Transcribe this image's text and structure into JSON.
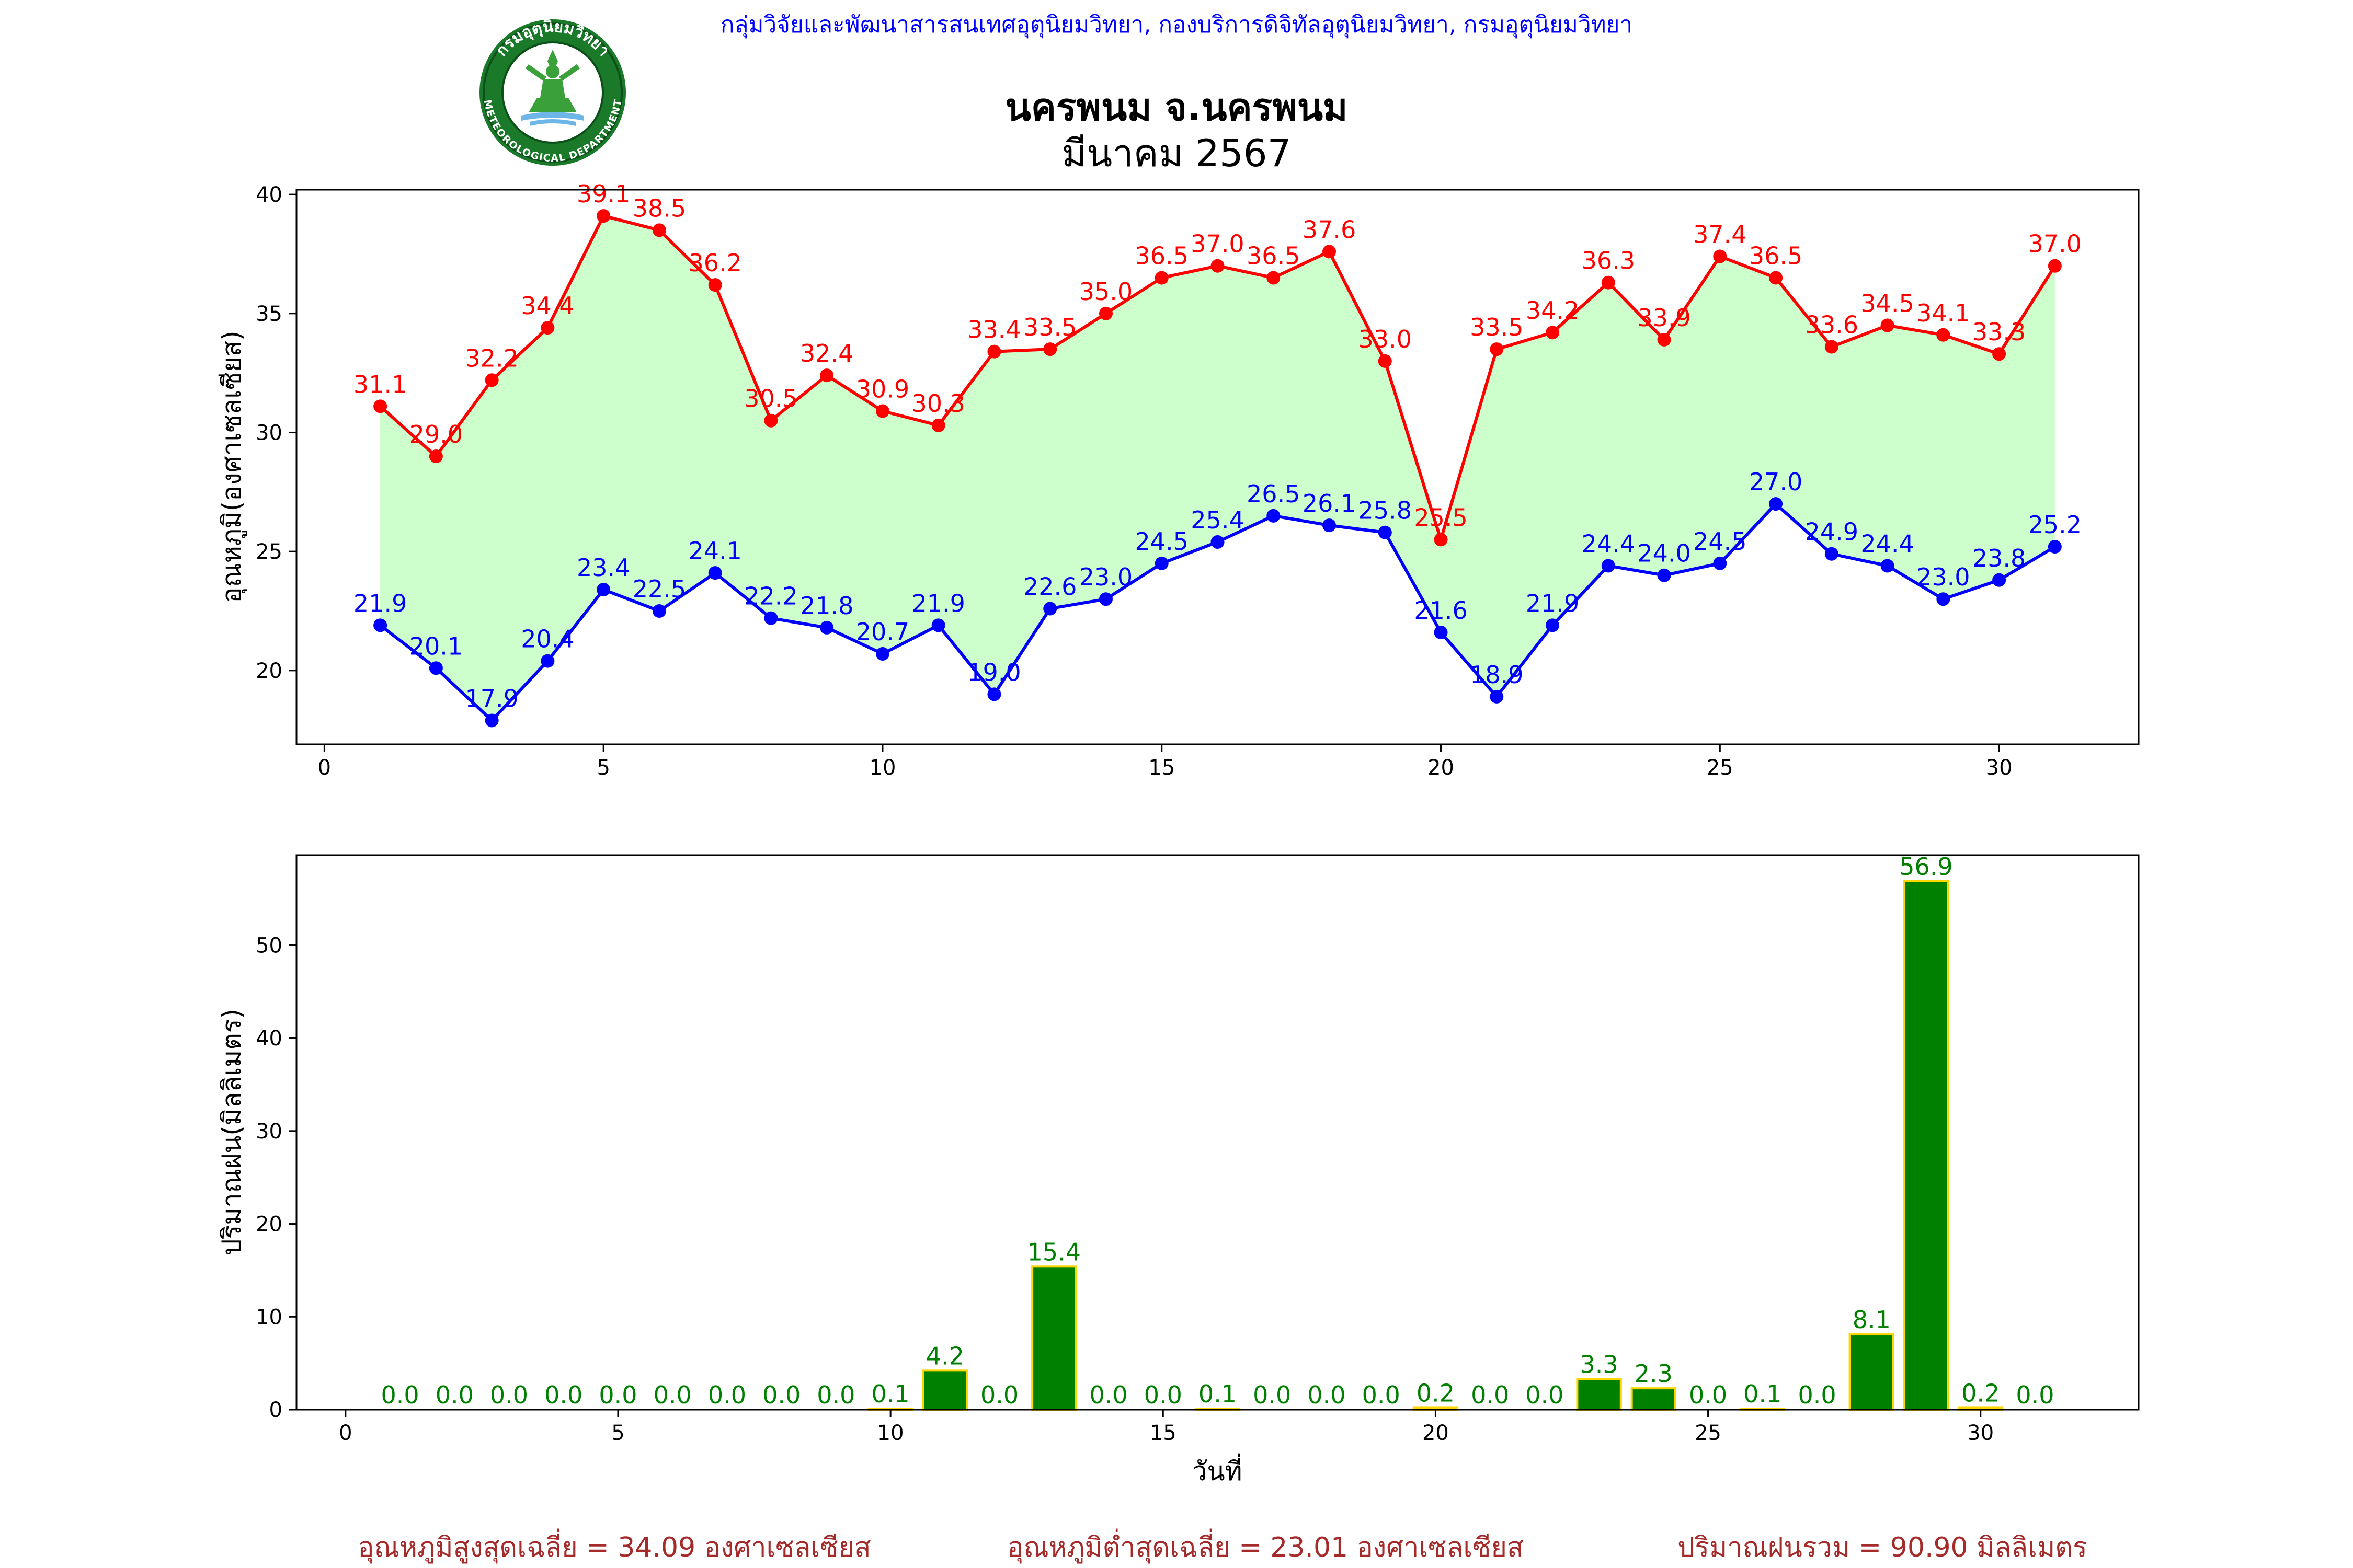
{
  "header": {
    "agency_line": "กลุ่มวิจัยและพัฒนาสารสนเทศอุตุนิยมวิทยา, กองบริการดิจิทัลอุตุนิยมวิทยา, กรมอุตุนิยมวิทยา",
    "station": "นครพนม จ.นครพนม",
    "month": "มีนาคม 2567",
    "logo": {
      "icon": "meteorological-department-seal-icon",
      "top_text": "กรมอุตุนิยมวิทยา",
      "bottom_text": "METEOROLOGICAL DEPARTMENT",
      "colors": {
        "ring": "#1a7a2a",
        "ring_dark": "#0b4f19",
        "deity": "#3aa13a",
        "inner": "#ffffff"
      }
    }
  },
  "colors": {
    "agency_text": "#0000ff",
    "tmax": "#ff0000",
    "tmin": "#0000ff",
    "band_fill": "#ccffcc",
    "rain_bar": "#008000",
    "rain_edge": "#ffd700",
    "rain_label": "#008000",
    "footer_text": "#a52a2a",
    "axis": "#000000"
  },
  "chart_data": [
    {
      "type": "line",
      "ylabel": "อุณหภูมิ(องศาเซลเซียส)",
      "xlim": [
        -0.5,
        32.5
      ],
      "ylim": [
        16.9,
        40.2
      ],
      "xticks": [
        0,
        5,
        10,
        15,
        20,
        25,
        30
      ],
      "yticks": [
        20,
        25,
        30,
        35,
        40
      ],
      "grid": false,
      "fill_between": "tmax-tmin",
      "x": [
        1,
        2,
        3,
        4,
        5,
        6,
        7,
        8,
        9,
        10,
        11,
        12,
        13,
        14,
        15,
        16,
        17,
        18,
        19,
        20,
        21,
        22,
        23,
        24,
        25,
        26,
        27,
        28,
        29,
        30,
        31
      ],
      "series": [
        {
          "key": "tmax",
          "values": [
            31.1,
            29.0,
            32.2,
            34.4,
            39.1,
            38.5,
            36.2,
            30.5,
            32.4,
            30.9,
            30.3,
            33.4,
            33.5,
            35.0,
            36.5,
            37.0,
            36.5,
            37.6,
            33.0,
            25.5,
            33.5,
            34.2,
            36.3,
            33.9,
            37.4,
            36.5,
            33.6,
            34.5,
            34.1,
            33.3,
            37.0
          ],
          "labels": [
            "31.1",
            "29.0",
            "32.2",
            "34.4",
            "39.1",
            "38.5",
            "36.2",
            "30.5",
            "32.4",
            "30.9",
            "30.3",
            "33.4",
            "33.5",
            "35.0",
            "36.5",
            "37.0",
            "36.5",
            "37.6",
            "33.0",
            "25.5",
            "33.5",
            "34.2",
            "36.3",
            "33.9",
            "37.4",
            "36.5",
            "33.6",
            "34.5",
            "34.1",
            "33.3",
            "37.0"
          ]
        },
        {
          "key": "tmin",
          "values": [
            21.9,
            20.1,
            17.9,
            20.4,
            23.4,
            22.5,
            24.1,
            22.2,
            21.8,
            20.7,
            21.9,
            19.0,
            22.6,
            23.0,
            24.5,
            25.4,
            26.5,
            26.1,
            25.8,
            21.6,
            18.9,
            21.9,
            24.4,
            24.0,
            24.5,
            27.0,
            24.9,
            24.4,
            23.0,
            23.8,
            25.2
          ],
          "labels": [
            "21.9",
            "20.1",
            "17.9",
            "20.4",
            "23.4",
            "22.5",
            "24.1",
            "22.2",
            "21.8",
            "20.7",
            "21.9",
            "19.0",
            "22.6",
            "23.0",
            "24.5",
            "25.4",
            "26.5",
            "26.1",
            "25.8",
            "21.6",
            "18.9",
            "21.9",
            "24.4",
            "24.0",
            "24.5",
            "27.0",
            "24.9",
            "24.4",
            "23.0",
            "23.8",
            "25.2"
          ]
        }
      ]
    },
    {
      "type": "bar",
      "xlabel": "วันที่",
      "ylabel": "ปริมาณฝน(มิลลิเมตร)",
      "xlim": [
        -0.9,
        32.9
      ],
      "ylim": [
        0,
        59.7
      ],
      "xticks": [
        0,
        5,
        10,
        15,
        20,
        25,
        30
      ],
      "yticks": [
        0,
        10,
        20,
        30,
        40,
        50
      ],
      "grid": false,
      "x": [
        1,
        2,
        3,
        4,
        5,
        6,
        7,
        8,
        9,
        10,
        11,
        12,
        13,
        14,
        15,
        16,
        17,
        18,
        19,
        20,
        21,
        22,
        23,
        24,
        25,
        26,
        27,
        28,
        29,
        30,
        31
      ],
      "values": [
        0.0,
        0.0,
        0.0,
        0.0,
        0.0,
        0.0,
        0.0,
        0.0,
        0.0,
        0.1,
        4.2,
        0.0,
        15.4,
        0.0,
        0.0,
        0.1,
        0.0,
        0.0,
        0.0,
        0.2,
        0.0,
        0.0,
        3.3,
        2.3,
        0.0,
        0.1,
        0.0,
        8.1,
        56.9,
        0.2,
        0.0
      ],
      "labels": [
        "0.0",
        "0.0",
        "0.0",
        "0.0",
        "0.0",
        "0.0",
        "0.0",
        "0.0",
        "0.0",
        "0.1",
        "4.2",
        "0.0",
        "15.4",
        "0.0",
        "0.0",
        "0.1",
        "0.0",
        "0.0",
        "0.0",
        "0.2",
        "0.0",
        "0.0",
        "3.3",
        "2.3",
        "0.0",
        "0.1",
        "0.0",
        "8.1",
        "56.9",
        "0.2",
        "0.0"
      ]
    }
  ],
  "footer": {
    "avg_max": "อุณหภูมิสูงสุดเฉลี่ย = 34.09 องศาเซลเซียส",
    "avg_min": "อุณหภูมิต่ำสุดเฉลี่ย = 23.01 องศาเซลเซียส",
    "total_rain": "ปริมาณฝนรวม = 90.90 มิลลิเมตร"
  }
}
